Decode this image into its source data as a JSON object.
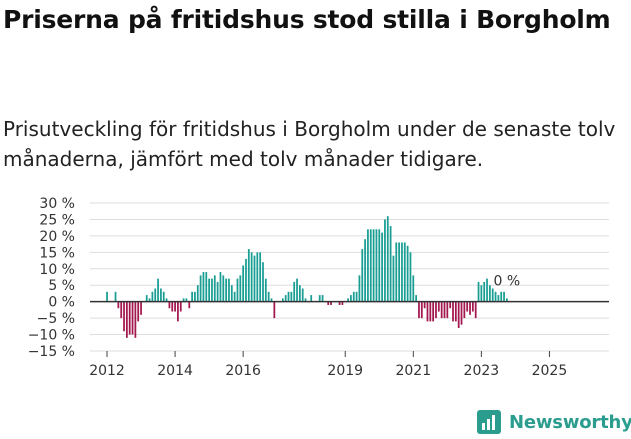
{
  "title": "Priserna på fritidshus stod stilla i Borgholm",
  "subtitle": "Prisutveckling för fritidshus i Borgholm under de senaste tolv månaderna, jämfört med tolv månader tidigare.",
  "brand": "Newsworthy",
  "colors": {
    "positive": "#1a9e94",
    "negative": "#a3174f",
    "brand": "#2a9d8f",
    "grid": "#dddddd",
    "zero": "#333333"
  },
  "chart_data": {
    "type": "bar",
    "ylabel": "",
    "xlabel": "",
    "ylim": [
      -15,
      30
    ],
    "yticks": [
      30,
      25,
      20,
      15,
      10,
      5,
      0,
      -5,
      -10,
      -15
    ],
    "ytick_labels": [
      "30 %",
      "25 %",
      "20 %",
      "15 %",
      "10 %",
      "5 %",
      "0 %",
      "−5 %",
      "−10 %",
      "−15 %"
    ],
    "xlim": [
      2011.5,
      2026.75
    ],
    "xticks": [
      {
        "x": 2012.0,
        "label": "2012"
      },
      {
        "x": 2014.0,
        "label": "2014"
      },
      {
        "x": 2016.0,
        "label": "2016"
      },
      {
        "x": 2019.0,
        "label": "2019"
      },
      {
        "x": 2021.0,
        "label": "2021"
      },
      {
        "x": 2023.0,
        "label": "2023"
      },
      {
        "x": 2025.0,
        "label": "2025"
      }
    ],
    "start": 2012.0,
    "step": 0.08333,
    "values": [
      3,
      0,
      0,
      3,
      -2,
      -5,
      -9,
      -11,
      -10,
      -10,
      -11,
      -6,
      -4,
      0,
      2,
      1,
      3,
      4,
      7,
      4,
      3,
      1,
      -2,
      -3,
      -3,
      -6,
      -3,
      1,
      1,
      -2,
      3,
      3,
      5,
      8,
      9,
      9,
      7,
      7,
      8,
      6,
      9,
      8,
      7,
      7,
      5,
      3,
      7,
      8,
      11,
      13,
      16,
      15,
      14,
      15,
      15,
      12,
      7,
      3,
      1,
      -5,
      0,
      0,
      1,
      2,
      3,
      3,
      6,
      7,
      5,
      4,
      1,
      0,
      2,
      0,
      0,
      2,
      2,
      0,
      -1,
      -1,
      0,
      0,
      -1,
      -1,
      0,
      1,
      2,
      3,
      3,
      8,
      16,
      19,
      22,
      22,
      22,
      22,
      22,
      21,
      25,
      26,
      23,
      14,
      18,
      18,
      18,
      18,
      17,
      15,
      8,
      2,
      -5,
      -5,
      -2,
      -6,
      -6,
      -6,
      -5,
      -3,
      -5,
      -5,
      -5,
      -2,
      -6,
      -6,
      -8,
      -7,
      -5,
      -3,
      -4,
      -3,
      -5,
      6,
      5,
      6,
      7,
      5,
      4,
      3,
      2,
      3,
      3,
      1
    ],
    "annotation": {
      "label": "0 %",
      "value": 0
    }
  }
}
